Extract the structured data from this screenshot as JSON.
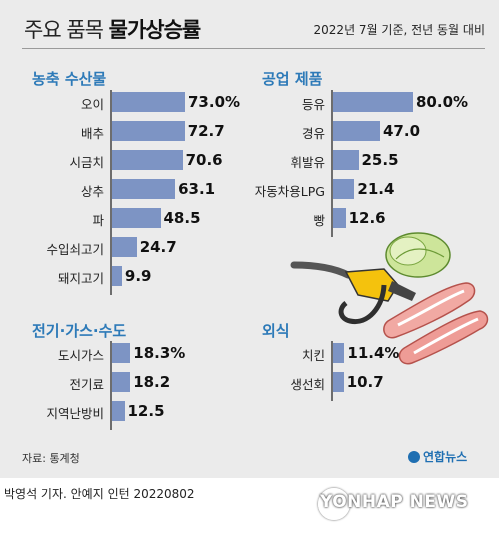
{
  "header": {
    "title_light": "주요 품목 ",
    "title_bold": "물가상승률",
    "note": "2022년 7월 기준, 전년 동월 대비"
  },
  "footer": {
    "source": "자료: 통계청",
    "logo": "연합뉴스",
    "credit": "박영석 기자. 안예지 인턴  20220802",
    "watermark": "YONHAP NEWS"
  },
  "colors": {
    "bar": "#7d94c4",
    "heading": "#2d7ab8",
    "axis": "#6d6d6d",
    "panel": "#ebebeb"
  },
  "illustration_icons": [
    "fuel-nozzle-icon",
    "cabbage-icon",
    "pork-belly-icon"
  ],
  "chart_data": [
    {
      "type": "bar",
      "orientation": "horizontal",
      "title": "농축 수산물",
      "unit": "%",
      "categories": [
        "오이",
        "배추",
        "시금치",
        "상추",
        "파",
        "수입쇠고기",
        "돼지고기"
      ],
      "values": [
        73.0,
        72.7,
        70.6,
        63.1,
        48.5,
        24.7,
        9.9
      ],
      "labels": [
        "73.0%",
        "72.7",
        "70.6",
        "63.1",
        "48.5",
        "24.7",
        "9.9"
      ]
    },
    {
      "type": "bar",
      "orientation": "horizontal",
      "title": "공업 제품",
      "unit": "%",
      "categories": [
        "등유",
        "경유",
        "휘발유",
        "자동차용LPG",
        "빵"
      ],
      "values": [
        80.0,
        47.0,
        25.5,
        21.4,
        12.6
      ],
      "labels": [
        "80.0%",
        "47.0",
        "25.5",
        "21.4",
        "12.6"
      ]
    },
    {
      "type": "bar",
      "orientation": "horizontal",
      "title": "전기·가스·수도",
      "unit": "%",
      "categories": [
        "도시가스",
        "전기료",
        "지역난방비"
      ],
      "values": [
        18.3,
        18.2,
        12.5
      ],
      "labels": [
        "18.3%",
        "18.2",
        "12.5"
      ]
    },
    {
      "type": "bar",
      "orientation": "horizontal",
      "title": "외식",
      "unit": "%",
      "categories": [
        "치킨",
        "생선회"
      ],
      "values": [
        11.4,
        10.7
      ],
      "labels": [
        "11.4%",
        "10.7"
      ]
    }
  ]
}
